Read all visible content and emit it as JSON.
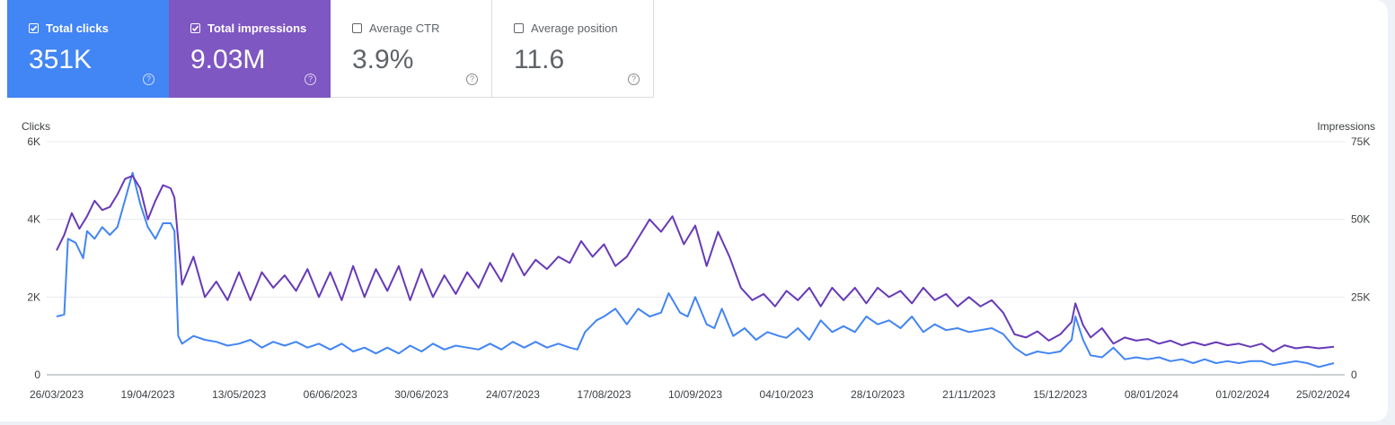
{
  "metrics": [
    {
      "label": "Total clicks",
      "value": "351K",
      "checked": true,
      "color": "#4285f4"
    },
    {
      "label": "Total impressions",
      "value": "9.03M",
      "checked": true,
      "color": "#7e57c2"
    },
    {
      "label": "Average CTR",
      "value": "3.9%",
      "checked": false
    },
    {
      "label": "Average position",
      "value": "11.6",
      "checked": false
    }
  ],
  "help_glyph": "?",
  "chart_data": {
    "type": "line",
    "y_left_label": "Clicks",
    "y_right_label": "Impressions",
    "y_left_ticks": [
      "6K",
      "4K",
      "2K",
      "0"
    ],
    "y_right_ticks": [
      "75K",
      "50K",
      "25K",
      "0"
    ],
    "y_left_range": [
      0,
      6000
    ],
    "y_right_range": [
      0,
      75000
    ],
    "x_tick_labels": [
      "26/03/2023",
      "19/04/2023",
      "13/05/2023",
      "06/06/2023",
      "30/06/2023",
      "24/07/2023",
      "17/08/2023",
      "10/09/2023",
      "04/10/2023",
      "28/10/2023",
      "21/11/2023",
      "15/12/2023",
      "08/01/2024",
      "01/02/2024",
      "25/02/2024"
    ],
    "x_range": [
      "2023-03-26",
      "2024-02-25"
    ],
    "grid": true,
    "series": [
      {
        "name": "Clicks",
        "axis": "left",
        "color": "#4285f4",
        "points": [
          [
            "2023-03-26",
            1500
          ],
          [
            "2023-03-28",
            1550
          ],
          [
            "2023-03-29",
            3500
          ],
          [
            "2023-03-31",
            3400
          ],
          [
            "2023-04-02",
            3000
          ],
          [
            "2023-04-03",
            3700
          ],
          [
            "2023-04-05",
            3500
          ],
          [
            "2023-04-07",
            3800
          ],
          [
            "2023-04-09",
            3600
          ],
          [
            "2023-04-11",
            3800
          ],
          [
            "2023-04-13",
            4500
          ],
          [
            "2023-04-15",
            5200
          ],
          [
            "2023-04-17",
            4400
          ],
          [
            "2023-04-19",
            3800
          ],
          [
            "2023-04-21",
            3500
          ],
          [
            "2023-04-23",
            3900
          ],
          [
            "2023-04-25",
            3900
          ],
          [
            "2023-04-26",
            3700
          ],
          [
            "2023-04-27",
            1000
          ],
          [
            "2023-04-28",
            800
          ],
          [
            "2023-05-01",
            1000
          ],
          [
            "2023-05-04",
            900
          ],
          [
            "2023-05-07",
            850
          ],
          [
            "2023-05-10",
            750
          ],
          [
            "2023-05-13",
            800
          ],
          [
            "2023-05-16",
            900
          ],
          [
            "2023-05-19",
            700
          ],
          [
            "2023-05-22",
            850
          ],
          [
            "2023-05-25",
            750
          ],
          [
            "2023-05-28",
            850
          ],
          [
            "2023-05-31",
            700
          ],
          [
            "2023-06-03",
            800
          ],
          [
            "2023-06-06",
            650
          ],
          [
            "2023-06-09",
            800
          ],
          [
            "2023-06-12",
            600
          ],
          [
            "2023-06-15",
            700
          ],
          [
            "2023-06-18",
            550
          ],
          [
            "2023-06-21",
            700
          ],
          [
            "2023-06-24",
            550
          ],
          [
            "2023-06-27",
            750
          ],
          [
            "2023-06-30",
            600
          ],
          [
            "2023-07-03",
            800
          ],
          [
            "2023-07-06",
            650
          ],
          [
            "2023-07-09",
            750
          ],
          [
            "2023-07-12",
            700
          ],
          [
            "2023-07-15",
            650
          ],
          [
            "2023-07-18",
            800
          ],
          [
            "2023-07-21",
            650
          ],
          [
            "2023-07-24",
            850
          ],
          [
            "2023-07-27",
            700
          ],
          [
            "2023-07-30",
            850
          ],
          [
            "2023-08-02",
            700
          ],
          [
            "2023-08-05",
            800
          ],
          [
            "2023-08-08",
            700
          ],
          [
            "2023-08-10",
            650
          ],
          [
            "2023-08-12",
            1100
          ],
          [
            "2023-08-15",
            1400
          ],
          [
            "2023-08-17",
            1500
          ],
          [
            "2023-08-20",
            1700
          ],
          [
            "2023-08-23",
            1300
          ],
          [
            "2023-08-26",
            1700
          ],
          [
            "2023-08-29",
            1500
          ],
          [
            "2023-09-01",
            1600
          ],
          [
            "2023-09-03",
            2100
          ],
          [
            "2023-09-06",
            1600
          ],
          [
            "2023-09-08",
            1500
          ],
          [
            "2023-09-10",
            2000
          ],
          [
            "2023-09-13",
            1300
          ],
          [
            "2023-09-15",
            1200
          ],
          [
            "2023-09-17",
            1700
          ],
          [
            "2023-09-20",
            1000
          ],
          [
            "2023-09-23",
            1200
          ],
          [
            "2023-09-26",
            900
          ],
          [
            "2023-09-29",
            1100
          ],
          [
            "2023-10-02",
            1000
          ],
          [
            "2023-10-04",
            950
          ],
          [
            "2023-10-07",
            1200
          ],
          [
            "2023-10-10",
            900
          ],
          [
            "2023-10-13",
            1400
          ],
          [
            "2023-10-16",
            1100
          ],
          [
            "2023-10-19",
            1250
          ],
          [
            "2023-10-22",
            1100
          ],
          [
            "2023-10-25",
            1500
          ],
          [
            "2023-10-28",
            1300
          ],
          [
            "2023-10-31",
            1400
          ],
          [
            "2023-11-03",
            1200
          ],
          [
            "2023-11-06",
            1500
          ],
          [
            "2023-11-09",
            1100
          ],
          [
            "2023-11-12",
            1300
          ],
          [
            "2023-11-15",
            1150
          ],
          [
            "2023-11-18",
            1200
          ],
          [
            "2023-11-21",
            1100
          ],
          [
            "2023-11-24",
            1150
          ],
          [
            "2023-11-27",
            1200
          ],
          [
            "2023-11-30",
            1050
          ],
          [
            "2023-12-03",
            700
          ],
          [
            "2023-12-06",
            500
          ],
          [
            "2023-12-09",
            600
          ],
          [
            "2023-12-12",
            550
          ],
          [
            "2023-12-15",
            600
          ],
          [
            "2023-12-18",
            900
          ],
          [
            "2023-12-19",
            1500
          ],
          [
            "2023-12-21",
            900
          ],
          [
            "2023-12-23",
            500
          ],
          [
            "2023-12-26",
            450
          ],
          [
            "2023-12-29",
            700
          ],
          [
            "2024-01-01",
            400
          ],
          [
            "2024-01-04",
            450
          ],
          [
            "2024-01-07",
            400
          ],
          [
            "2024-01-10",
            450
          ],
          [
            "2024-01-13",
            350
          ],
          [
            "2024-01-16",
            400
          ],
          [
            "2024-01-19",
            300
          ],
          [
            "2024-01-22",
            400
          ],
          [
            "2024-01-25",
            300
          ],
          [
            "2024-01-28",
            350
          ],
          [
            "2024-01-31",
            300
          ],
          [
            "2024-02-03",
            350
          ],
          [
            "2024-02-06",
            350
          ],
          [
            "2024-02-09",
            250
          ],
          [
            "2024-02-12",
            300
          ],
          [
            "2024-02-15",
            350
          ],
          [
            "2024-02-18",
            300
          ],
          [
            "2024-02-21",
            200
          ],
          [
            "2024-02-25",
            300
          ]
        ]
      },
      {
        "name": "Impressions",
        "axis": "right",
        "color": "#673ab7",
        "points": [
          [
            "2023-03-26",
            40000
          ],
          [
            "2023-03-28",
            45000
          ],
          [
            "2023-03-30",
            52000
          ],
          [
            "2023-04-01",
            47000
          ],
          [
            "2023-04-03",
            51000
          ],
          [
            "2023-04-05",
            56000
          ],
          [
            "2023-04-07",
            53000
          ],
          [
            "2023-04-09",
            54000
          ],
          [
            "2023-04-11",
            58000
          ],
          [
            "2023-04-13",
            63000
          ],
          [
            "2023-04-15",
            64000
          ],
          [
            "2023-04-17",
            60000
          ],
          [
            "2023-04-19",
            50000
          ],
          [
            "2023-04-21",
            56000
          ],
          [
            "2023-04-23",
            61000
          ],
          [
            "2023-04-25",
            60000
          ],
          [
            "2023-04-26",
            57000
          ],
          [
            "2023-04-28",
            29000
          ],
          [
            "2023-05-01",
            38000
          ],
          [
            "2023-05-04",
            25000
          ],
          [
            "2023-05-07",
            30000
          ],
          [
            "2023-05-10",
            24000
          ],
          [
            "2023-05-13",
            33000
          ],
          [
            "2023-05-16",
            24000
          ],
          [
            "2023-05-19",
            33000
          ],
          [
            "2023-05-22",
            28000
          ],
          [
            "2023-05-25",
            32000
          ],
          [
            "2023-05-28",
            27000
          ],
          [
            "2023-05-31",
            34000
          ],
          [
            "2023-06-03",
            25000
          ],
          [
            "2023-06-06",
            33000
          ],
          [
            "2023-06-09",
            24000
          ],
          [
            "2023-06-12",
            35000
          ],
          [
            "2023-06-15",
            25000
          ],
          [
            "2023-06-18",
            34000
          ],
          [
            "2023-06-21",
            27000
          ],
          [
            "2023-06-24",
            35000
          ],
          [
            "2023-06-27",
            24000
          ],
          [
            "2023-06-30",
            34000
          ],
          [
            "2023-07-03",
            25000
          ],
          [
            "2023-07-06",
            32000
          ],
          [
            "2023-07-09",
            26000
          ],
          [
            "2023-07-12",
            33000
          ],
          [
            "2023-07-15",
            28000
          ],
          [
            "2023-07-18",
            36000
          ],
          [
            "2023-07-21",
            30000
          ],
          [
            "2023-07-24",
            39000
          ],
          [
            "2023-07-27",
            32000
          ],
          [
            "2023-07-30",
            37000
          ],
          [
            "2023-08-02",
            34000
          ],
          [
            "2023-08-05",
            38000
          ],
          [
            "2023-08-08",
            36000
          ],
          [
            "2023-08-11",
            43000
          ],
          [
            "2023-08-14",
            38000
          ],
          [
            "2023-08-17",
            42000
          ],
          [
            "2023-08-20",
            35000
          ],
          [
            "2023-08-23",
            38000
          ],
          [
            "2023-08-26",
            44000
          ],
          [
            "2023-08-29",
            50000
          ],
          [
            "2023-09-01",
            46000
          ],
          [
            "2023-09-04",
            51000
          ],
          [
            "2023-09-07",
            42000
          ],
          [
            "2023-09-10",
            48000
          ],
          [
            "2023-09-13",
            35000
          ],
          [
            "2023-09-16",
            46000
          ],
          [
            "2023-09-19",
            38000
          ],
          [
            "2023-09-22",
            28000
          ],
          [
            "2023-09-25",
            24000
          ],
          [
            "2023-09-28",
            26000
          ],
          [
            "2023-10-01",
            22000
          ],
          [
            "2023-10-04",
            27000
          ],
          [
            "2023-10-07",
            24000
          ],
          [
            "2023-10-10",
            28000
          ],
          [
            "2023-10-13",
            22000
          ],
          [
            "2023-10-16",
            28000
          ],
          [
            "2023-10-19",
            24000
          ],
          [
            "2023-10-22",
            28000
          ],
          [
            "2023-10-25",
            23000
          ],
          [
            "2023-10-28",
            28000
          ],
          [
            "2023-10-31",
            25000
          ],
          [
            "2023-11-03",
            27000
          ],
          [
            "2023-11-06",
            23000
          ],
          [
            "2023-11-09",
            28000
          ],
          [
            "2023-11-12",
            24000
          ],
          [
            "2023-11-15",
            26000
          ],
          [
            "2023-11-18",
            22000
          ],
          [
            "2023-11-21",
            25000
          ],
          [
            "2023-11-24",
            22000
          ],
          [
            "2023-11-27",
            24000
          ],
          [
            "2023-11-30",
            20000
          ],
          [
            "2023-12-03",
            13000
          ],
          [
            "2023-12-06",
            12000
          ],
          [
            "2023-12-09",
            14000
          ],
          [
            "2023-12-12",
            11000
          ],
          [
            "2023-12-15",
            13000
          ],
          [
            "2023-12-18",
            17000
          ],
          [
            "2023-12-19",
            23000
          ],
          [
            "2023-12-21",
            16000
          ],
          [
            "2023-12-23",
            12000
          ],
          [
            "2023-12-26",
            15000
          ],
          [
            "2023-12-29",
            10000
          ],
          [
            "2024-01-01",
            12000
          ],
          [
            "2024-01-04",
            11000
          ],
          [
            "2024-01-07",
            11500
          ],
          [
            "2024-01-10",
            10000
          ],
          [
            "2024-01-13",
            11000
          ],
          [
            "2024-01-16",
            9500
          ],
          [
            "2024-01-19",
            10500
          ],
          [
            "2024-01-22",
            9500
          ],
          [
            "2024-01-25",
            10500
          ],
          [
            "2024-01-28",
            9500
          ],
          [
            "2024-01-31",
            10000
          ],
          [
            "2024-02-03",
            9000
          ],
          [
            "2024-02-06",
            10000
          ],
          [
            "2024-02-09",
            7500
          ],
          [
            "2024-02-12",
            9500
          ],
          [
            "2024-02-15",
            8500
          ],
          [
            "2024-02-18",
            9000
          ],
          [
            "2024-02-21",
            8500
          ],
          [
            "2024-02-25",
            9000
          ]
        ]
      }
    ]
  }
}
